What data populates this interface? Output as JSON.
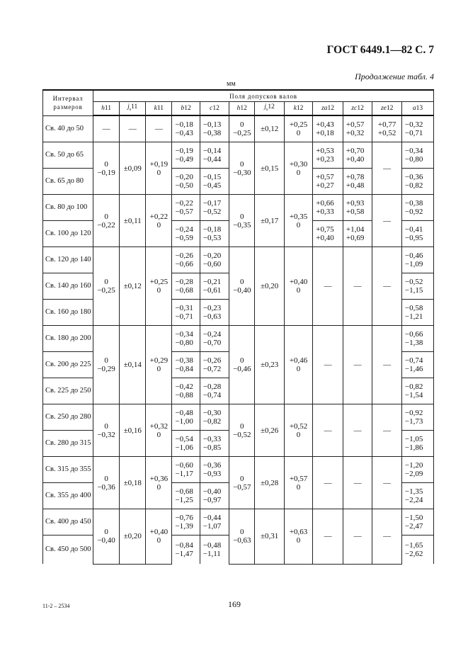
{
  "header": {
    "title": "ГОСТ 6449.1—82 С. 7",
    "continuation": "Продолжение табл. 4",
    "unit": "мм"
  },
  "table": {
    "interval_header": "Интервал\nразмеров",
    "fields_header": "Поля допусков валов",
    "columns": [
      {
        "key": "h11",
        "letter": "h",
        "sub": "",
        "num": "11"
      },
      {
        "key": "js11",
        "letter": "j",
        "sub": "s",
        "num": "11"
      },
      {
        "key": "k11",
        "letter": "k",
        "sub": "",
        "num": "11"
      },
      {
        "key": "b12",
        "letter": "b",
        "sub": "",
        "num": "12"
      },
      {
        "key": "c12",
        "letter": "c",
        "sub": "",
        "num": "12"
      },
      {
        "key": "h12",
        "letter": "h",
        "sub": "",
        "num": "12"
      },
      {
        "key": "js12",
        "letter": "j",
        "sub": "s",
        "num": "12"
      },
      {
        "key": "k12",
        "letter": "k",
        "sub": "",
        "num": "12"
      },
      {
        "key": "za12",
        "letter": "za",
        "sub": "",
        "num": "12"
      },
      {
        "key": "zc12",
        "letter": "zc",
        "sub": "",
        "num": "12"
      },
      {
        "key": "ze12",
        "letter": "ze",
        "sub": "",
        "num": "12"
      },
      {
        "key": "a13",
        "letter": "a",
        "sub": "",
        "num": "13"
      }
    ],
    "groups": [
      {
        "labels": [
          "Св. 40 до 50"
        ],
        "h11": "—",
        "js11": "—",
        "k11": "—",
        "b12": [
          "−0,18\n−0,43"
        ],
        "c12": [
          "−0,13\n−0,38"
        ],
        "h12": "0\n−0,25",
        "js12": "±0,12",
        "k12": "+0,25\n0",
        "za12": [
          "+0,43\n+0,18"
        ],
        "zc12": [
          "+0,57\n+0,32"
        ],
        "ze12": [
          "+0,77\n+0,52"
        ],
        "a13": [
          "−0,32\n−0,71"
        ]
      },
      {
        "labels": [
          "Св. 50 до 65",
          "Св. 65 до 80"
        ],
        "h11": "0\n−0,19",
        "js11": "±0,09",
        "k11": "+0,19\n0",
        "b12": [
          "−0,19\n−0,49",
          "−0,20\n−0,50"
        ],
        "c12": [
          "−0,14\n−0,44",
          "−0,15\n−0,45"
        ],
        "h12": "0\n−0,30",
        "js12": "±0,15",
        "k12": "+0,30\n0",
        "za12": [
          "+0,53\n+0,23",
          "+0,57\n+0,27"
        ],
        "zc12": [
          "+0,70\n+0,40",
          "+0,78\n+0,48"
        ],
        "ze12": "—",
        "a13": [
          "−0,34\n−0,80",
          "−0,36\n−0,82"
        ]
      },
      {
        "labels": [
          "Св. 80 до 100",
          "Св. 100 до 120"
        ],
        "h11": "0\n−0,22",
        "js11": "±0,11",
        "k11": "+0,22\n0",
        "b12": [
          "−0,22\n−0,57",
          "−0,24\n−0,59"
        ],
        "c12": [
          "−0,17\n−0,52",
          "−0,18\n−0,53"
        ],
        "h12": "0\n−0,35",
        "js12": "±0,17",
        "k12": "+0,35\n0",
        "za12": [
          "+0,66\n+0,33",
          "+0,75\n+0,40"
        ],
        "zc12": [
          "+0,93\n+0,58",
          "+1,04\n+0,69"
        ],
        "ze12": "—",
        "a13": [
          "−0,38\n−0,92",
          "−0,41\n−0,95"
        ]
      },
      {
        "labels": [
          "Св. 120 до 140",
          "Св. 140 до 160",
          "Св. 160 до 180"
        ],
        "h11": "0\n−0,25",
        "js11": "±0,12",
        "k11": "+0,25\n0",
        "b12": [
          "−0,26\n−0,66",
          "−0,28\n−0,68",
          "−0,31\n−0,71"
        ],
        "c12": [
          "−0,20\n−0,60",
          "−0,21\n−0,61",
          "−0,23\n−0,63"
        ],
        "h12": "0\n−0,40",
        "js12": "±0,20",
        "k12": "+0,40\n0",
        "za12": "—",
        "zc12": "—",
        "ze12": "—",
        "a13": [
          "−0,46\n−1,09",
          "−0,52\n−1,15",
          "−0,58\n−1,21"
        ]
      },
      {
        "labels": [
          "Св. 180 до 200",
          "Св. 200 до 225",
          "Св. 225 до 250"
        ],
        "h11": "0\n−0,29",
        "js11": "±0,14",
        "k11": "+0,29\n0",
        "b12": [
          "−0,34\n−0,80",
          "−0,38\n−0,84",
          "−0,42\n−0,88"
        ],
        "c12": [
          "−0,24\n−0,70",
          "−0,26\n−0,72",
          "−0,28\n−0,74"
        ],
        "h12": "0\n−0,46",
        "js12": "±0,23",
        "k12": "+0,46\n0",
        "za12": "—",
        "zc12": "—",
        "ze12": "—",
        "a13": [
          "−0,66\n−1,38",
          "−0,74\n−1,46",
          "−0,82\n−1,54"
        ]
      },
      {
        "labels": [
          "Св. 250 до 280",
          "Св. 280 до 315"
        ],
        "h11": "0\n−0,32",
        "js11": "±0,16",
        "k11": "+0,32\n0",
        "b12": [
          "−0,48\n−1,00",
          "−0,54\n−1,06"
        ],
        "c12": [
          "−0,30\n−0,82",
          "−0,33\n−0,85"
        ],
        "h12": "0\n−0,52",
        "js12": "±0,26",
        "k12": "+0,52\n0",
        "za12": "—",
        "zc12": "—",
        "ze12": "—",
        "a13": [
          "−0,92\n−1,73",
          "−1,05\n−1,86"
        ]
      },
      {
        "labels": [
          "Св. 315 до 355",
          "Св. 355 до 400"
        ],
        "h11": "0\n−0,36",
        "js11": "±0,18",
        "k11": "+0,36\n0",
        "b12": [
          "−0,60\n−1,17",
          "−0,68\n−1,25"
        ],
        "c12": [
          "−0,36\n−0,93",
          "−0,40\n−0,97"
        ],
        "h12": "0\n−0,57",
        "js12": "±0,28",
        "k12": "+0,57\n0",
        "za12": "—",
        "zc12": "—",
        "ze12": "—",
        "a13": [
          "−1,20\n−2,09",
          "−1,35\n−2,24"
        ]
      },
      {
        "labels": [
          "Св. 400 до 450",
          "Св. 450 до 500"
        ],
        "h11": "0\n−0,40",
        "js11": "±0,20",
        "k11": "+0,40\n0",
        "b12": [
          "−0,76\n−1,39",
          "−0,84\n−1,47"
        ],
        "c12": [
          "−0,44\n−1,07",
          "−0,48\n−1,11"
        ],
        "h12": "0\n−0,63",
        "js12": "±0,31",
        "k12": "+0,63\n0",
        "za12": "—",
        "zc12": "—",
        "ze12": "—",
        "a13": [
          "−1,50\n−2,47",
          "−1,65\n−2,62"
        ]
      }
    ]
  },
  "footer": {
    "print_code": "11-2 – 2534",
    "page_number": "169"
  }
}
